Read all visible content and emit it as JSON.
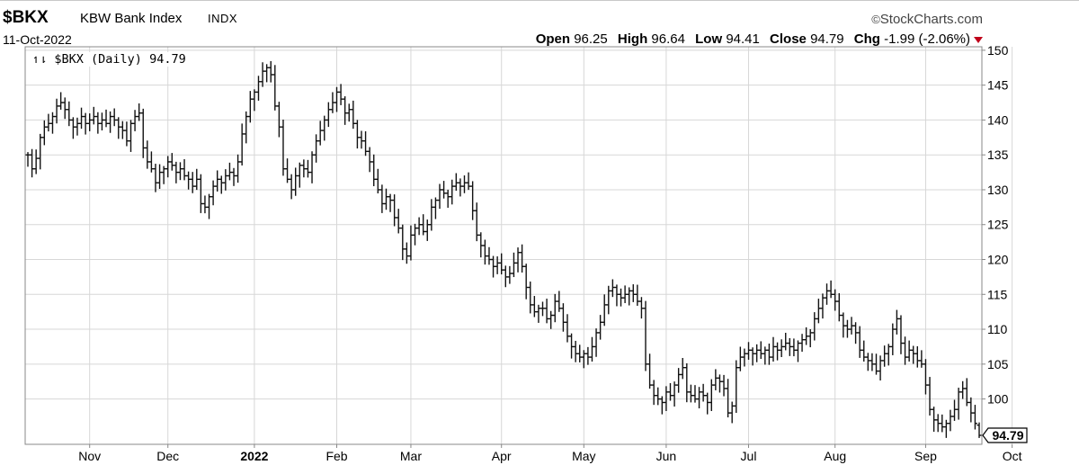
{
  "header": {
    "symbol": "$BKX",
    "name": "KBW Bank Index",
    "exchange": "INDX",
    "date": "11-Oct-2022",
    "brand": "StockCharts.com",
    "brand_mark": "©",
    "open_label": "Open",
    "open": "96.25",
    "high_label": "High",
    "high": "96.64",
    "low_label": "Low",
    "low": "94.41",
    "close_label": "Close",
    "close": "94.79",
    "chg_label": "Chg",
    "chg": "-1.99 (-2.06%)"
  },
  "series_label": "$BKX (Daily) 94.79",
  "series_icon": "bar-chart-icon",
  "colors": {
    "bars": "#111111",
    "grid": "#d7d7d7",
    "axis": "#888888",
    "down": "#c0001a"
  },
  "chart_data": {
    "type": "ohlc",
    "grid": true,
    "y_axis_side": "right",
    "ylim": [
      93.5,
      150.5
    ],
    "y_ticks": [
      100,
      105,
      110,
      115,
      120,
      125,
      130,
      135,
      140,
      145,
      150
    ],
    "x_tick_labels": [
      "Nov",
      "Dec",
      "2022",
      "Feb",
      "Mar",
      "Apr",
      "May",
      "Jun",
      "Jul",
      "Aug",
      "Sep",
      "Oct"
    ],
    "x_tick_bar_index": [
      15,
      34,
      55,
      75,
      93,
      115,
      135,
      155,
      175,
      196,
      218,
      239
    ],
    "last_value_label": "94.79",
    "closes": [
      135.0,
      133.0,
      134.5,
      137.5,
      139.0,
      139.5,
      140.5,
      142.0,
      142.5,
      141.5,
      140.0,
      139.0,
      139.5,
      140.5,
      139.5,
      140.0,
      140.5,
      139.5,
      140.0,
      139.5,
      140.5,
      140.0,
      139.0,
      138.5,
      137.0,
      139.5,
      140.5,
      141.0,
      136.0,
      134.0,
      133.0,
      131.0,
      132.5,
      133.0,
      134.0,
      133.5,
      132.5,
      133.0,
      132.0,
      131.5,
      130.5,
      131.5,
      128.0,
      127.5,
      129.0,
      130.5,
      131.5,
      131.0,
      132.0,
      132.5,
      132.0,
      134.0,
      138.0,
      140.5,
      143.0,
      144.0,
      145.5,
      147.0,
      147.5,
      146.5,
      142.0,
      139.0,
      133.0,
      131.5,
      130.0,
      132.0,
      133.5,
      133.0,
      132.5,
      135.0,
      137.0,
      138.5,
      140.0,
      141.5,
      142.5,
      144.0,
      143.0,
      141.0,
      141.5,
      139.5,
      137.5,
      137.0,
      135.5,
      134.0,
      131.5,
      130.0,
      128.0,
      129.0,
      128.5,
      126.0,
      124.5,
      121.5,
      120.5,
      123.5,
      124.5,
      125.0,
      124.0,
      125.0,
      127.5,
      128.5,
      130.0,
      129.5,
      129.0,
      130.5,
      131.0,
      130.5,
      131.0,
      130.5,
      127.0,
      123.5,
      122.0,
      120.5,
      120.0,
      119.0,
      119.5,
      118.5,
      117.5,
      118.0,
      119.5,
      121.0,
      119.0,
      116.0,
      113.5,
      112.5,
      113.0,
      113.0,
      111.5,
      112.0,
      114.0,
      113.0,
      111.0,
      109.0,
      107.5,
      106.5,
      106.0,
      106.5,
      106.0,
      107.5,
      109.5,
      111.0,
      113.5,
      115.5,
      116.0,
      115.0,
      114.5,
      115.0,
      115.5,
      115.0,
      114.0,
      113.0,
      105.0,
      102.0,
      100.5,
      100.0,
      99.5,
      101.0,
      100.5,
      102.0,
      103.5,
      104.5,
      101.0,
      100.5,
      100.0,
      101.0,
      100.5,
      99.5,
      102.0,
      103.0,
      102.5,
      101.5,
      98.0,
      99.0,
      104.5,
      106.0,
      106.5,
      107.0,
      106.5,
      107.0,
      106.5,
      107.0,
      106.0,
      107.5,
      107.0,
      107.5,
      108.0,
      107.5,
      107.0,
      108.0,
      108.5,
      109.0,
      109.5,
      111.5,
      113.0,
      114.5,
      115.5,
      115.0,
      114.0,
      112.0,
      110.5,
      110.0,
      110.5,
      109.5,
      107.0,
      106.0,
      105.5,
      105.0,
      104.0,
      105.5,
      106.5,
      107.5,
      110.0,
      111.5,
      108.0,
      106.0,
      107.0,
      106.5,
      105.5,
      105.0,
      102.0,
      98.5,
      97.0,
      96.5,
      96.0,
      96.5,
      97.5,
      98.5,
      101.0,
      101.5,
      99.5,
      98.0,
      96.5,
      95.0
    ],
    "last_bar": {
      "open": 96.25,
      "high": 96.64,
      "low": 94.41,
      "close": 94.79
    }
  }
}
